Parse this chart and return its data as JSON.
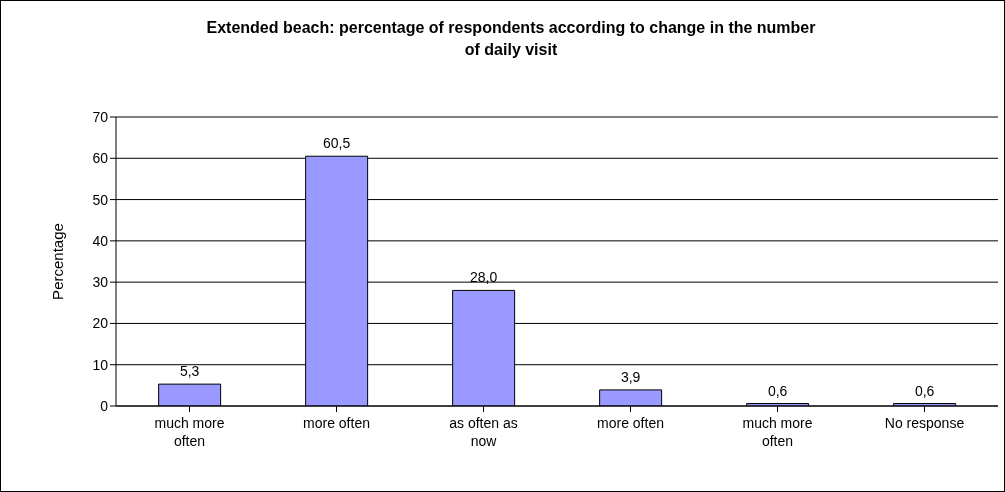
{
  "chart_data": {
    "type": "bar",
    "title": "Extended beach: percentage of respondents according to change in the number of daily visit",
    "ylabel": "Percentage",
    "categories": [
      "much more often",
      "more often",
      "as often as now",
      "more often",
      "much more often",
      "No response"
    ],
    "values": [
      5.3,
      60.5,
      28.0,
      3.9,
      0.6,
      0.6
    ],
    "value_labels": [
      "5,3",
      "60,5",
      "28,0",
      "3,9",
      "0,6",
      "0,6"
    ],
    "color": "#9999ff",
    "ylim": [
      0,
      70
    ],
    "yticks": [
      0,
      10,
      20,
      30,
      40,
      50,
      60,
      70
    ],
    "grid": "y",
    "legend": false
  }
}
